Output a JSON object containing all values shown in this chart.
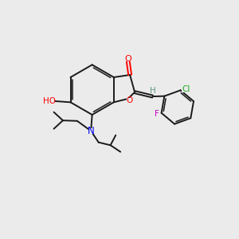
{
  "background_color": "#ebebeb",
  "bond_color": "#1a1a1a",
  "atom_colors": {
    "O": "#ff0000",
    "H_green": "#5a9a7a",
    "N": "#0000ee",
    "Cl": "#22aa22",
    "F": "#cc00cc"
  },
  "figsize": [
    3.0,
    3.0
  ],
  "dpi": 100
}
